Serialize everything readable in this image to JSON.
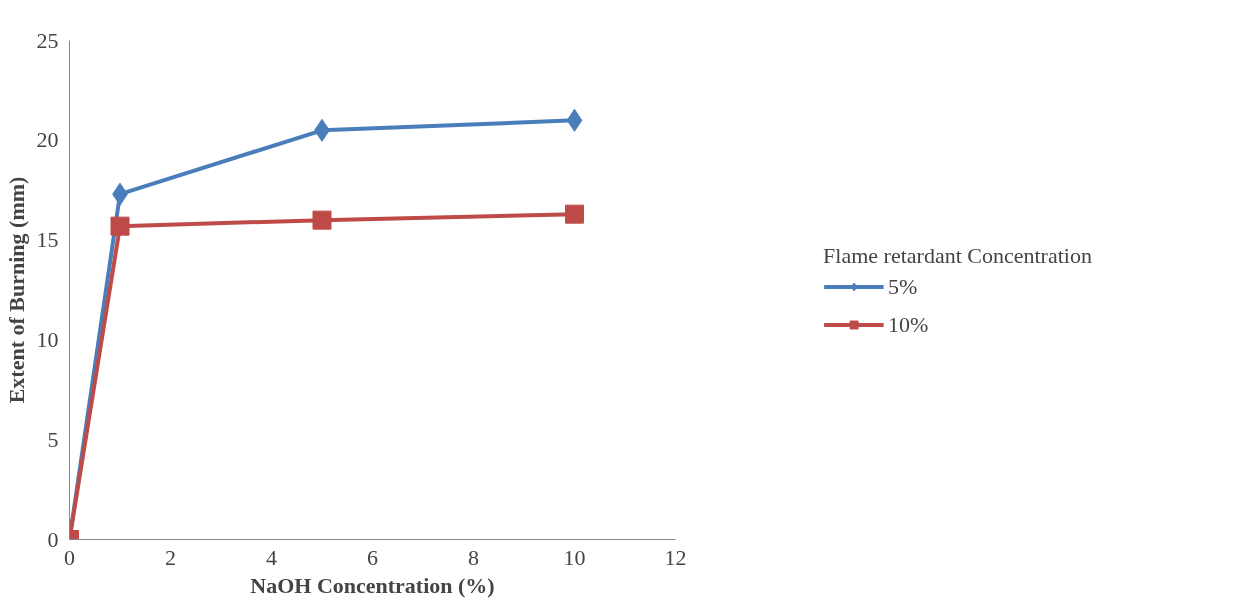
{
  "chart_data": {
    "type": "line",
    "xlabel": "NaOH Concentration (%)",
    "ylabel": "Extent of Burning (mm)",
    "legend_title": "Flame retardant Concentration",
    "legend": "right",
    "grid": false,
    "line_style": "solid",
    "xlim": [
      0,
      12
    ],
    "xticks": [
      0,
      2,
      4,
      6,
      8,
      10,
      12
    ],
    "ylim": [
      0,
      25
    ],
    "yticks": [
      0,
      5,
      10,
      15,
      20,
      25
    ],
    "series": [
      {
        "name": "5%",
        "color": "#4a7ebb",
        "marker": "diamond",
        "x": [
          0,
          1,
          5,
          10
        ],
        "values": [
          0,
          17.3,
          20.5,
          21
        ]
      },
      {
        "name": "10%",
        "color": "#be4b48",
        "marker": "square",
        "x": [
          0,
          1,
          5,
          10
        ],
        "values": [
          0,
          15.7,
          16,
          16.3
        ]
      }
    ]
  }
}
